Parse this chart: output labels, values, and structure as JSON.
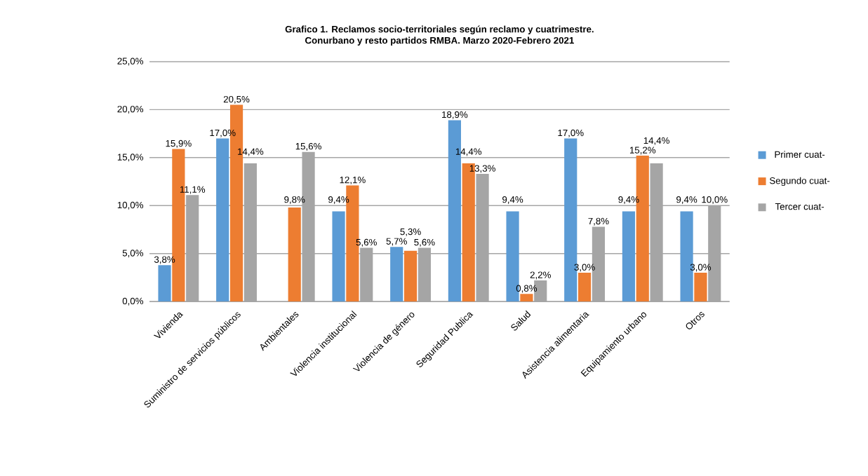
{
  "chart_data": {
    "type": "bar",
    "title": "Grafico 1. Reclamos socio-territoriales según reclamo y cuatrimestre.",
    "subtitle": "Conurbano y resto partidos RMBA. Marzo 2020-Febrero 2021",
    "categories": [
      "Vivienda",
      "Suministro de servicios públicos",
      "Ambientales",
      "Violencia institucional",
      "Violencia de género",
      "Seguridad Publica",
      "Salud",
      "Asistencia alimentaria",
      "Equipamiento urbano",
      "Otros"
    ],
    "series": [
      {
        "name": "Primer cuat-",
        "color": "#5b9bd5",
        "values": [
          3.8,
          17.0,
          null,
          9.4,
          5.7,
          18.9,
          9.4,
          17.0,
          9.4,
          9.4
        ],
        "value_labels": [
          "3,8%",
          "17,0%",
          null,
          "9,4%",
          "5,7%",
          "18,9%",
          "9,4%",
          "17,0%",
          "9,4%",
          "9,4%"
        ]
      },
      {
        "name": "Segundo cuat-",
        "color": "#ed7d31",
        "values": [
          15.9,
          20.5,
          9.8,
          12.1,
          5.3,
          14.4,
          0.8,
          3.0,
          15.2,
          3.0
        ],
        "value_labels": [
          "15,9%",
          "20,5%",
          "9,8%",
          "12,1%",
          "5,3%",
          "14,4%",
          "0,8%",
          "3,0%",
          "15,2%",
          "3,0%"
        ]
      },
      {
        "name": "Tercer cuat-",
        "color": "#a5a5a5",
        "values": [
          11.1,
          14.4,
          15.6,
          5.6,
          5.6,
          13.3,
          2.2,
          7.8,
          14.4,
          10.0
        ],
        "value_labels": [
          "11,1%",
          "14,4%",
          "15,6%",
          "5,6%",
          "5,6%",
          "13,3%",
          "2,2%",
          "7,8%",
          "14,4%",
          "10,0%"
        ]
      }
    ],
    "ylim": [
      0,
      25
    ],
    "yticks": [
      {
        "value": 0,
        "label": "0,0%"
      },
      {
        "value": 5,
        "label": "5,0%"
      },
      {
        "value": 10,
        "label": "10,0%"
      },
      {
        "value": 15,
        "label": "15,0%"
      },
      {
        "value": 20,
        "label": "20,0%"
      },
      {
        "value": 25,
        "label": "25,0%"
      }
    ],
    "grid": "y",
    "legend": "right"
  }
}
